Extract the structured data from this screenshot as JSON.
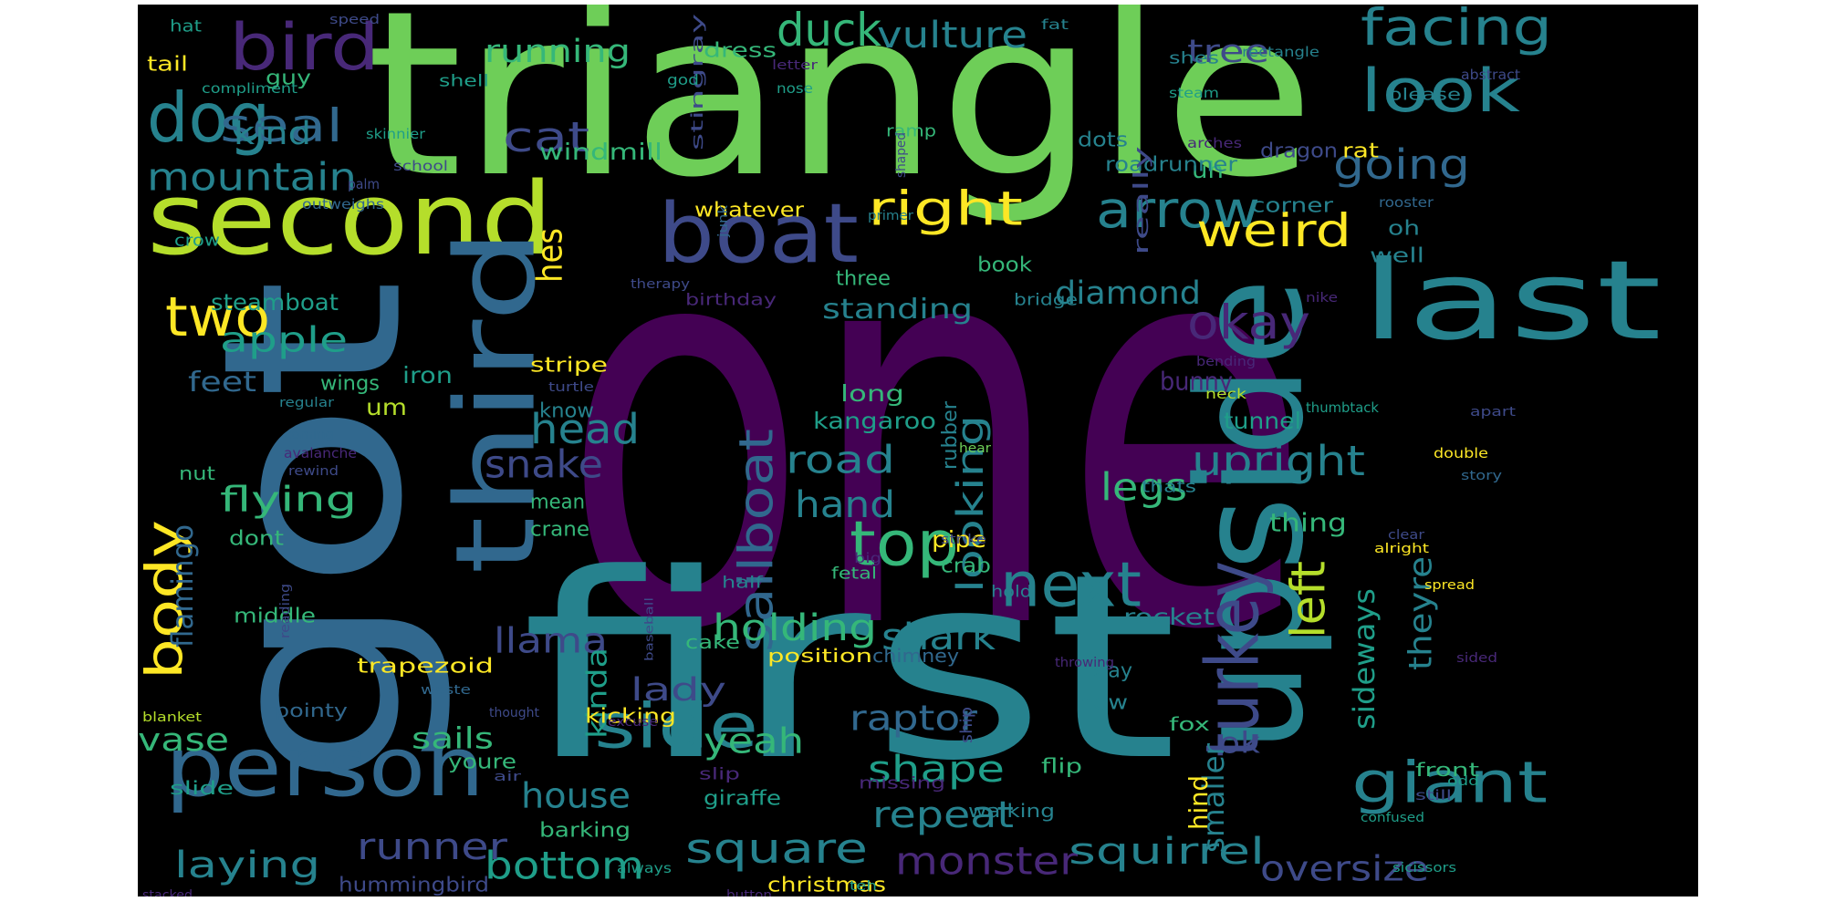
{
  "palette": {
    "background": "#000000",
    "purple": "#440154",
    "indigo": "#482878",
    "blue": "#3e4a89",
    "steel": "#31688e",
    "teal": "#26828e",
    "sea": "#1f9e89",
    "green": "#35b779",
    "lime": "#6ece58",
    "chartreuse": "#b5de2b",
    "yellow": "#fde725"
  },
  "words": [
    {
      "text": "one",
      "color": "purple"
    },
    {
      "text": "triangle",
      "color": "lime"
    },
    {
      "text": "first",
      "color": "teal"
    },
    {
      "text": "got",
      "color": "steel"
    },
    {
      "text": "second",
      "color": "chartreuse"
    },
    {
      "text": "upside",
      "color": "teal"
    },
    {
      "text": "third",
      "color": "steel"
    },
    {
      "text": "last",
      "color": "teal"
    },
    {
      "text": "person",
      "color": "steel"
    },
    {
      "text": "boat",
      "color": "blue"
    },
    {
      "text": "bird",
      "color": "indigo"
    },
    {
      "text": "dog",
      "color": "teal"
    },
    {
      "text": "turkey",
      "color": "blue"
    },
    {
      "text": "giant",
      "color": "teal"
    },
    {
      "text": "side",
      "color": "teal"
    },
    {
      "text": "facing",
      "color": "teal"
    },
    {
      "text": "look",
      "color": "teal"
    },
    {
      "text": "next",
      "color": "teal"
    },
    {
      "text": "top",
      "color": "green"
    },
    {
      "text": "two",
      "color": "yellow"
    },
    {
      "text": "body",
      "color": "yellow"
    },
    {
      "text": "arrow",
      "color": "teal"
    },
    {
      "text": "weird",
      "color": "yellow"
    },
    {
      "text": "right",
      "color": "yellow"
    },
    {
      "text": "sailboat",
      "color": "steel"
    },
    {
      "text": "seal",
      "color": "steel"
    },
    {
      "text": "cat",
      "color": "blue"
    },
    {
      "text": "mountain",
      "color": "teal"
    },
    {
      "text": "duck",
      "color": "green"
    },
    {
      "text": "vulture",
      "color": "teal"
    },
    {
      "text": "going",
      "color": "steel"
    },
    {
      "text": "square",
      "color": "teal"
    },
    {
      "text": "bottom",
      "color": "sea"
    },
    {
      "text": "monster",
      "color": "indigo"
    },
    {
      "text": "squirrel",
      "color": "teal"
    },
    {
      "text": "okay",
      "color": "indigo"
    },
    {
      "text": "head",
      "color": "teal"
    },
    {
      "text": "snake",
      "color": "blue"
    },
    {
      "text": "looking",
      "color": "teal"
    },
    {
      "text": "legs",
      "color": "green"
    },
    {
      "text": "upright",
      "color": "teal"
    },
    {
      "text": "left",
      "color": "chartreuse"
    },
    {
      "text": "theyre",
      "color": "teal"
    },
    {
      "text": "shark",
      "color": "teal"
    },
    {
      "text": "holding",
      "color": "green"
    },
    {
      "text": "road",
      "color": "teal"
    },
    {
      "text": "hand",
      "color": "teal"
    },
    {
      "text": "runner",
      "color": "blue"
    },
    {
      "text": "laying",
      "color": "teal"
    },
    {
      "text": "repeat",
      "color": "teal"
    },
    {
      "text": "oversize",
      "color": "blue"
    },
    {
      "text": "shape",
      "color": "sea"
    },
    {
      "text": "raptor",
      "color": "steel"
    },
    {
      "text": "yeah",
      "color": "green"
    },
    {
      "text": "house",
      "color": "teal"
    },
    {
      "text": "lady",
      "color": "blue"
    },
    {
      "text": "llama",
      "color": "blue"
    },
    {
      "text": "flying",
      "color": "green"
    },
    {
      "text": "apple",
      "color": "sea"
    },
    {
      "text": "kind",
      "color": "teal"
    },
    {
      "text": "hes",
      "color": "yellow"
    },
    {
      "text": "running",
      "color": "green"
    },
    {
      "text": "diamond",
      "color": "teal"
    },
    {
      "text": "tree",
      "color": "blue"
    },
    {
      "text": "standing",
      "color": "teal"
    },
    {
      "text": "sideways",
      "color": "sea"
    },
    {
      "text": "smaller",
      "color": "teal"
    },
    {
      "text": "flamingo",
      "color": "steel"
    },
    {
      "text": "kinda",
      "color": "sea"
    },
    {
      "text": "vase",
      "color": "green"
    },
    {
      "text": "sails",
      "color": "green"
    },
    {
      "text": "steamboat",
      "color": "sea"
    },
    {
      "text": "windmill",
      "color": "green"
    },
    {
      "text": "kangaroo",
      "color": "sea"
    },
    {
      "text": "feet",
      "color": "steel"
    },
    {
      "text": "hummingbird",
      "color": "blue"
    },
    {
      "text": "iron",
      "color": "sea"
    },
    {
      "text": "bunny",
      "color": "indigo"
    },
    {
      "text": "tunnel",
      "color": "sea"
    },
    {
      "text": "rocket",
      "color": "teal"
    },
    {
      "text": "ok",
      "color": "blue"
    },
    {
      "text": "pipe",
      "color": "yellow"
    },
    {
      "text": "thing",
      "color": "green"
    },
    {
      "text": "hind",
      "color": "yellow"
    },
    {
      "text": "crane",
      "color": "green"
    },
    {
      "text": "mean",
      "color": "green"
    },
    {
      "text": "trapezoid",
      "color": "yellow"
    },
    {
      "text": "dress",
      "color": "green"
    },
    {
      "text": "uh",
      "color": "green"
    },
    {
      "text": "crab",
      "color": "green"
    },
    {
      "text": "giraffe",
      "color": "sea"
    },
    {
      "text": "christmas",
      "color": "yellow"
    },
    {
      "text": "barking",
      "color": "green"
    },
    {
      "text": "kicking",
      "color": "yellow"
    },
    {
      "text": "youre",
      "color": "green"
    },
    {
      "text": "middle",
      "color": "green"
    },
    {
      "text": "stripe",
      "color": "yellow"
    },
    {
      "text": "know",
      "color": "teal"
    },
    {
      "text": "long",
      "color": "green"
    },
    {
      "text": "rubber",
      "color": "teal"
    },
    {
      "text": "um",
      "color": "chartreuse"
    },
    {
      "text": "wings",
      "color": "green"
    },
    {
      "text": "dots",
      "color": "teal"
    },
    {
      "text": "roadrunner",
      "color": "teal"
    },
    {
      "text": "really",
      "color": "blue"
    },
    {
      "text": "dragon",
      "color": "blue"
    },
    {
      "text": "rat",
      "color": "yellow"
    },
    {
      "text": "corner",
      "color": "teal"
    },
    {
      "text": "oh",
      "color": "teal"
    },
    {
      "text": "well",
      "color": "teal"
    },
    {
      "text": "book",
      "color": "green"
    },
    {
      "text": "three",
      "color": "green"
    },
    {
      "text": "whatever",
      "color": "yellow"
    },
    {
      "text": "guy",
      "color": "green"
    },
    {
      "text": "tail",
      "color": "yellow"
    },
    {
      "text": "hat",
      "color": "sea"
    },
    {
      "text": "shell",
      "color": "sea"
    },
    {
      "text": "shes",
      "color": "teal"
    },
    {
      "text": "please",
      "color": "teal"
    },
    {
      "text": "ramp",
      "color": "green"
    },
    {
      "text": "position",
      "color": "yellow"
    },
    {
      "text": "chimney",
      "color": "steel"
    },
    {
      "text": "cake",
      "color": "green"
    },
    {
      "text": "half",
      "color": "teal"
    },
    {
      "text": "fetal",
      "color": "green"
    },
    {
      "text": "hold",
      "color": "teal"
    },
    {
      "text": "way",
      "color": "teal"
    },
    {
      "text": "now",
      "color": "teal"
    },
    {
      "text": "flip",
      "color": "green"
    },
    {
      "text": "fox",
      "color": "green"
    },
    {
      "text": "front",
      "color": "green"
    },
    {
      "text": "walking",
      "color": "teal"
    },
    {
      "text": "missing",
      "color": "indigo"
    },
    {
      "text": "slip",
      "color": "indigo"
    },
    {
      "text": "ship",
      "color": "blue"
    },
    {
      "text": "thats",
      "color": "teal"
    },
    {
      "text": "bridge",
      "color": "teal"
    },
    {
      "text": "birthday",
      "color": "indigo"
    },
    {
      "text": "dont",
      "color": "green"
    },
    {
      "text": "pointy",
      "color": "steel"
    },
    {
      "text": "slide",
      "color": "sea"
    },
    {
      "text": "crow",
      "color": "sea"
    },
    {
      "text": "nut",
      "color": "green"
    },
    {
      "text": "stingray",
      "color": "blue"
    },
    {
      "text": "god",
      "color": "sea"
    },
    {
      "text": "nose",
      "color": "sea"
    },
    {
      "text": "letter",
      "color": "indigo"
    },
    {
      "text": "speed",
      "color": "blue"
    },
    {
      "text": "fat",
      "color": "teal"
    },
    {
      "text": "rectangle",
      "color": "teal"
    },
    {
      "text": "abstract",
      "color": "blue"
    },
    {
      "text": "steam",
      "color": "sea"
    },
    {
      "text": "arches",
      "color": "indigo"
    },
    {
      "text": "rooster",
      "color": "steel"
    },
    {
      "text": "skinnier",
      "color": "sea"
    },
    {
      "text": "school",
      "color": "blue"
    },
    {
      "text": "palm",
      "color": "blue"
    },
    {
      "text": "compliment",
      "color": "sea"
    },
    {
      "text": "outweighs",
      "color": "steel"
    },
    {
      "text": "primer",
      "color": "teal"
    },
    {
      "text": "shaped",
      "color": "blue"
    },
    {
      "text": "junk",
      "color": "steel"
    },
    {
      "text": "therapy",
      "color": "blue"
    },
    {
      "text": "nike",
      "color": "indigo"
    },
    {
      "text": "regular",
      "color": "teal"
    },
    {
      "text": "coming",
      "color": "steel"
    },
    {
      "text": "avalanche",
      "color": "indigo"
    },
    {
      "text": "rewind",
      "color": "blue"
    },
    {
      "text": "turtle",
      "color": "blue"
    },
    {
      "text": "bending",
      "color": "indigo"
    },
    {
      "text": "neck",
      "color": "chartreuse"
    },
    {
      "text": "thumbtack",
      "color": "sea"
    },
    {
      "text": "apart",
      "color": "blue"
    },
    {
      "text": "double",
      "color": "yellow"
    },
    {
      "text": "story",
      "color": "steel"
    },
    {
      "text": "hear",
      "color": "lime"
    },
    {
      "text": "strike",
      "color": "blue"
    },
    {
      "text": "big",
      "color": "indigo"
    },
    {
      "text": "clear",
      "color": "blue"
    },
    {
      "text": "alright",
      "color": "yellow"
    },
    {
      "text": "baseball",
      "color": "blue"
    },
    {
      "text": "reading",
      "color": "blue"
    },
    {
      "text": "throwing",
      "color": "indigo"
    },
    {
      "text": "sided",
      "color": "indigo"
    },
    {
      "text": "spread",
      "color": "yellow"
    },
    {
      "text": "waste",
      "color": "steel"
    },
    {
      "text": "thought",
      "color": "blue"
    },
    {
      "text": "excuse",
      "color": "indigo"
    },
    {
      "text": "blanket",
      "color": "chartreuse"
    },
    {
      "text": "air",
      "color": "blue"
    },
    {
      "text": "still",
      "color": "blue"
    },
    {
      "text": "odd",
      "color": "sea"
    },
    {
      "text": "confused",
      "color": "sea"
    },
    {
      "text": "always",
      "color": "sea"
    },
    {
      "text": "teh",
      "color": "sea"
    },
    {
      "text": "sicissors",
      "color": "sea"
    },
    {
      "text": "stacked",
      "color": "indigo"
    },
    {
      "text": "button",
      "color": "indigo"
    },
    {
      "text": "knees",
      "color": "sea"
    },
    {
      "text": "normally",
      "color": "indigo"
    }
  ]
}
